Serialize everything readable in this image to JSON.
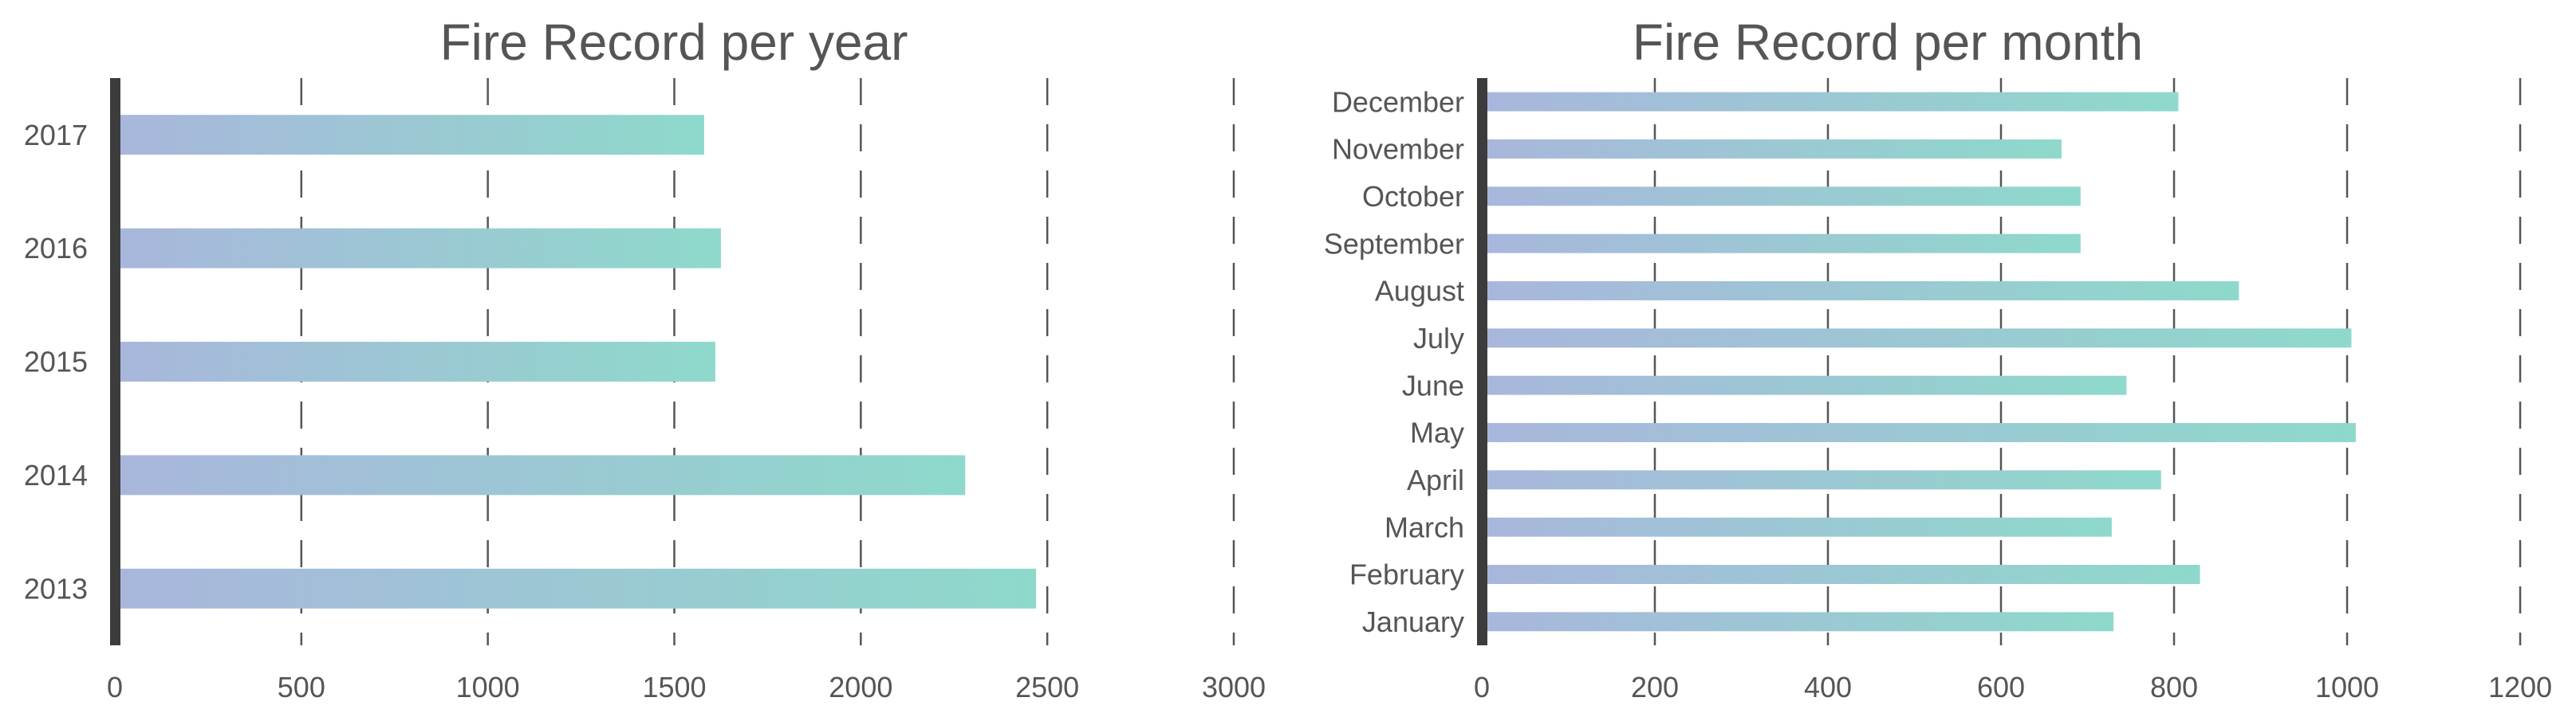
{
  "chart_data": [
    {
      "type": "bar",
      "orientation": "horizontal",
      "title": "Fire Record per year",
      "categories": [
        "2013",
        "2014",
        "2015",
        "2016",
        "2017"
      ],
      "values": [
        2470,
        2280,
        1610,
        1625,
        1580
      ],
      "xlim": [
        0,
        3000
      ],
      "xticks": [
        "0",
        "500",
        "1000",
        "1500",
        "2000",
        "2500",
        "3000"
      ],
      "grid": "vertical-dashed",
      "bar_gradient": [
        "#a9b6dc",
        "#8ed9cb"
      ]
    },
    {
      "type": "bar",
      "orientation": "horizontal",
      "title": "Fire Record per month",
      "categories": [
        "January",
        "February",
        "March",
        "April",
        "May",
        "June",
        "July",
        "August",
        "September",
        "October",
        "November",
        "December"
      ],
      "values": [
        730,
        830,
        728,
        785,
        1010,
        745,
        1005,
        875,
        692,
        692,
        670,
        805
      ],
      "xlim": [
        0,
        1200
      ],
      "xticks": [
        "0",
        "200",
        "400",
        "600",
        "800",
        "1000",
        "1200"
      ],
      "grid": "vertical-dashed",
      "bar_gradient": [
        "#a9b6dc",
        "#8ed9cb"
      ]
    }
  ]
}
